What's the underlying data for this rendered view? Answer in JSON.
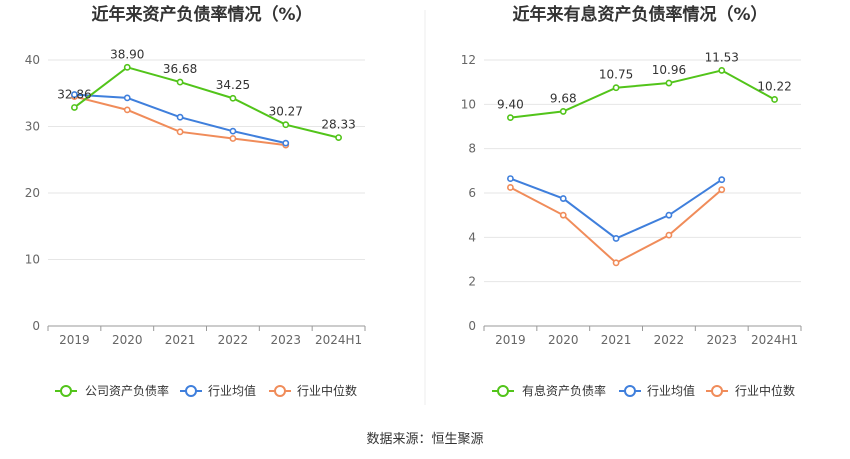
{
  "source_text": "数据来源：恒生聚源",
  "chart_data": [
    {
      "type": "line",
      "title": "近年来资产负债率情况（%）",
      "categories": [
        "2019",
        "2020",
        "2021",
        "2022",
        "2023",
        "2024H1"
      ],
      "ylim": [
        0,
        40
      ],
      "yticks": [
        0,
        10,
        20,
        30,
        40
      ],
      "grid": true,
      "legend_position": "bottom",
      "series": [
        {
          "name": "公司资产负债率",
          "color": "#52c41a",
          "labeled": true,
          "values": [
            32.86,
            38.9,
            36.68,
            34.25,
            30.27,
            28.33
          ],
          "labels": [
            "32.86",
            "38.90",
            "36.68",
            "34.25",
            "30.27",
            "28.33"
          ]
        },
        {
          "name": "行业均值",
          "color": "#3f7fdc",
          "labeled": false,
          "values": [
            34.8,
            34.3,
            31.4,
            29.3,
            27.5,
            null
          ]
        },
        {
          "name": "行业中位数",
          "color": "#f08c5a",
          "labeled": false,
          "values": [
            34.5,
            32.5,
            29.2,
            28.2,
            27.2,
            null
          ]
        }
      ]
    },
    {
      "type": "line",
      "title": "近年来有息资产负债率情况（%）",
      "categories": [
        "2019",
        "2020",
        "2021",
        "2022",
        "2023",
        "2024H1"
      ],
      "ylim": [
        0,
        12
      ],
      "yticks": [
        0,
        2,
        4,
        6,
        8,
        10,
        12
      ],
      "grid": true,
      "legend_position": "bottom",
      "series": [
        {
          "name": "有息资产负债率",
          "color": "#52c41a",
          "labeled": true,
          "values": [
            9.4,
            9.68,
            10.75,
            10.96,
            11.53,
            10.22
          ],
          "labels": [
            "9.40",
            "9.68",
            "10.75",
            "10.96",
            "11.53",
            "10.22"
          ]
        },
        {
          "name": "行业均值",
          "color": "#3f7fdc",
          "labeled": false,
          "values": [
            6.65,
            5.75,
            3.95,
            5.0,
            6.6,
            null
          ]
        },
        {
          "name": "行业中位数",
          "color": "#f08c5a",
          "labeled": false,
          "values": [
            6.25,
            5.0,
            2.85,
            4.1,
            6.15,
            null
          ]
        }
      ]
    }
  ]
}
